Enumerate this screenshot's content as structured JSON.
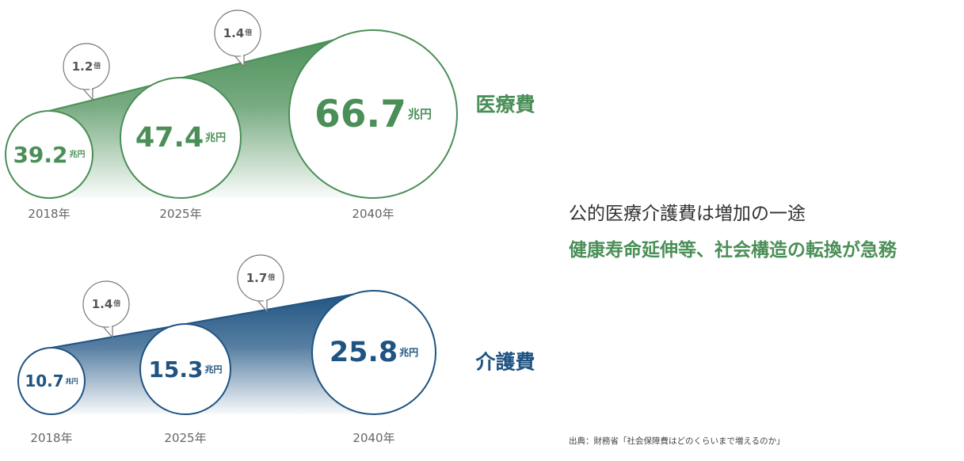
{
  "colors": {
    "medical": "#4a8f57",
    "care": "#1e5382",
    "year_text": "#666666"
  },
  "unit": "兆円",
  "chart_data": [
    {
      "type": "bubble",
      "title": "医療費",
      "categories": [
        "2018年",
        "2025年",
        "2040年"
      ],
      "values": [
        39.2,
        47.4,
        66.7
      ],
      "value_labels": [
        "39.2",
        "47.4",
        "66.7"
      ],
      "ratios": [
        "1.2倍",
        "1.4倍"
      ],
      "unit": "兆円"
    },
    {
      "type": "bubble",
      "title": "介護費",
      "categories": [
        "2018年",
        "2025年",
        "2040年"
      ],
      "values": [
        10.7,
        15.3,
        25.8
      ],
      "value_labels": [
        "10.7",
        "15.3",
        "25.8"
      ],
      "ratios": [
        "1.4倍",
        "1.7倍"
      ],
      "unit": "兆円"
    }
  ],
  "headline": "公的医療介護費は増加の一途",
  "subheadline": "健康寿命延伸等、社会構造の転換が急務",
  "source": "出典：財務省「社会保障費はどのくらいまで増えるのか」"
}
